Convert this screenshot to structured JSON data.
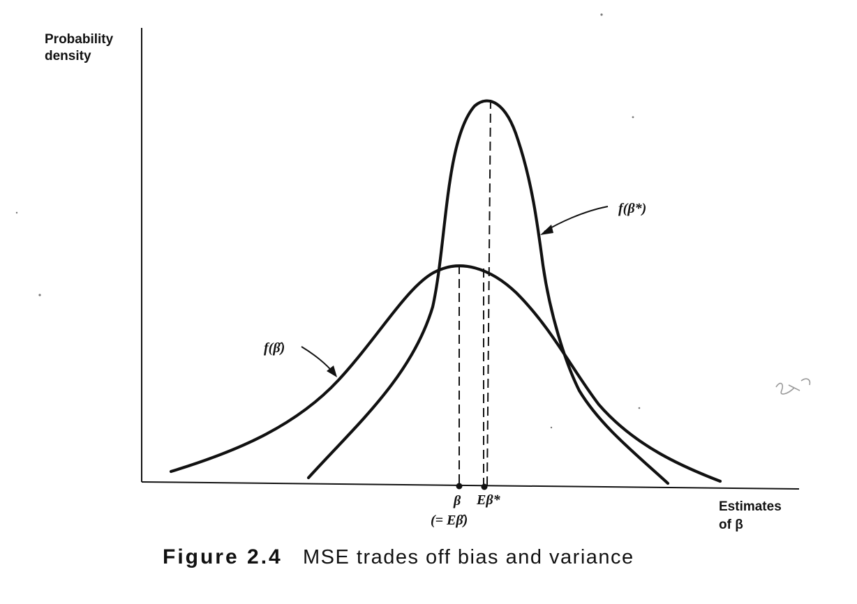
{
  "y_axis_label": [
    "Probability",
    "density"
  ],
  "x_axis_label": [
    "Estimates",
    "of β"
  ],
  "curves": {
    "narrow": "f(β*)",
    "wide": "f(β̂)"
  },
  "ticks": {
    "beta": "β",
    "beta_note": "(= Eβ̂)",
    "e_beta_star": "Eβ*"
  },
  "caption": {
    "number": "Figure 2.4",
    "text": "MSE trades off bias and variance"
  }
}
